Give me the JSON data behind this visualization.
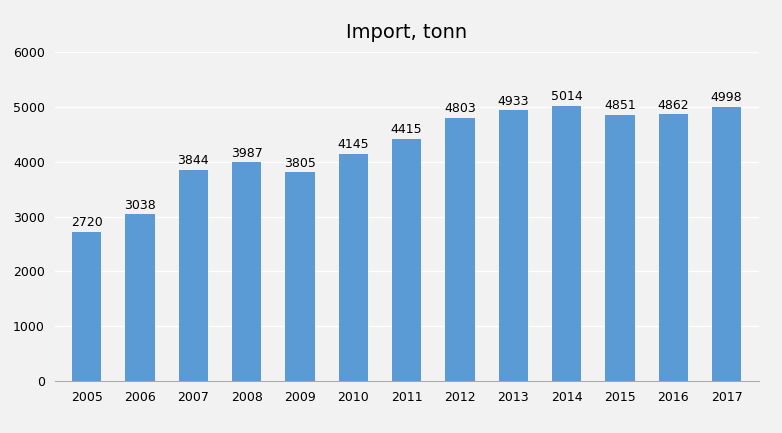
{
  "title": "Import, tonn",
  "categories": [
    2005,
    2006,
    2007,
    2008,
    2009,
    2010,
    2011,
    2012,
    2013,
    2014,
    2015,
    2016,
    2017
  ],
  "values": [
    2720,
    3038,
    3844,
    3987,
    3805,
    4145,
    4415,
    4803,
    4933,
    5014,
    4851,
    4862,
    4998
  ],
  "bar_color": "#5b9bd5",
  "ylim": [
    0,
    6000
  ],
  "yticks": [
    0,
    1000,
    2000,
    3000,
    4000,
    5000,
    6000
  ],
  "background_color": "#f2f2f2",
  "plot_background_color": "#f2f2f2",
  "grid_color": "#ffffff",
  "title_fontsize": 14,
  "tick_fontsize": 9,
  "annotation_fontsize": 9
}
